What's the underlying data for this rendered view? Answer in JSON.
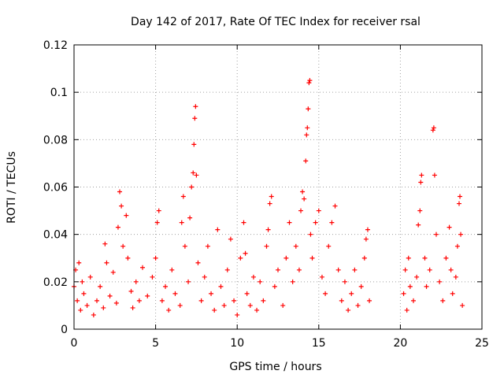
{
  "chart_data": {
    "type": "scatter",
    "title": "Day 142 of 2017, Rate Of TEC Index for receiver rsal",
    "xlabel": "GPS time / hours",
    "ylabel": "ROTI / TECUs",
    "xlim": [
      0,
      25
    ],
    "ylim": [
      0,
      0.12
    ],
    "xticks": [
      0,
      5,
      10,
      15,
      20,
      25
    ],
    "xtick_labels": [
      "0",
      "5",
      "10",
      "15",
      "20",
      "25"
    ],
    "yticks": [
      0,
      0.02,
      0.04,
      0.06,
      0.08,
      0.1,
      0.12
    ],
    "ytick_labels": [
      "0",
      "0.02",
      "0.04",
      "0.06",
      "0.08",
      "0.1",
      "0.12"
    ],
    "grid": true,
    "marker": "plus",
    "color": "#ff0000",
    "data_gap_hours": [
      18.2,
      20.2
    ],
    "series": [
      {
        "name": "ROTI",
        "points": [
          [
            0.0,
            0.018
          ],
          [
            0.1,
            0.025
          ],
          [
            0.2,
            0.012
          ],
          [
            0.3,
            0.028
          ],
          [
            0.4,
            0.008
          ],
          [
            0.5,
            0.02
          ],
          [
            0.6,
            0.015
          ],
          [
            0.8,
            0.01
          ],
          [
            1.0,
            0.022
          ],
          [
            1.2,
            0.006
          ],
          [
            1.4,
            0.012
          ],
          [
            1.6,
            0.018
          ],
          [
            1.8,
            0.009
          ],
          [
            1.9,
            0.036
          ],
          [
            2.0,
            0.028
          ],
          [
            2.2,
            0.014
          ],
          [
            2.4,
            0.024
          ],
          [
            2.6,
            0.011
          ],
          [
            2.7,
            0.043
          ],
          [
            2.8,
            0.058
          ],
          [
            2.9,
            0.052
          ],
          [
            3.0,
            0.035
          ],
          [
            3.2,
            0.048
          ],
          [
            3.3,
            0.03
          ],
          [
            3.5,
            0.016
          ],
          [
            3.6,
            0.009
          ],
          [
            3.8,
            0.02
          ],
          [
            4.0,
            0.012
          ],
          [
            4.2,
            0.026
          ],
          [
            4.5,
            0.014
          ],
          [
            4.8,
            0.022
          ],
          [
            5.0,
            0.03
          ],
          [
            5.1,
            0.045
          ],
          [
            5.2,
            0.05
          ],
          [
            5.4,
            0.012
          ],
          [
            5.6,
            0.018
          ],
          [
            5.8,
            0.008
          ],
          [
            6.0,
            0.025
          ],
          [
            6.2,
            0.015
          ],
          [
            6.5,
            0.01
          ],
          [
            6.6,
            0.045
          ],
          [
            6.7,
            0.056
          ],
          [
            6.8,
            0.035
          ],
          [
            7.0,
            0.02
          ],
          [
            7.1,
            0.047
          ],
          [
            7.2,
            0.06
          ],
          [
            7.3,
            0.066
          ],
          [
            7.35,
            0.078
          ],
          [
            7.4,
            0.089
          ],
          [
            7.45,
            0.094
          ],
          [
            7.5,
            0.065
          ],
          [
            7.6,
            0.028
          ],
          [
            7.8,
            0.012
          ],
          [
            8.0,
            0.022
          ],
          [
            8.2,
            0.035
          ],
          [
            8.4,
            0.015
          ],
          [
            8.6,
            0.008
          ],
          [
            8.8,
            0.042
          ],
          [
            9.0,
            0.018
          ],
          [
            9.2,
            0.01
          ],
          [
            9.4,
            0.025
          ],
          [
            9.6,
            0.038
          ],
          [
            9.8,
            0.012
          ],
          [
            10.0,
            0.006
          ],
          [
            10.2,
            0.03
          ],
          [
            10.4,
            0.045
          ],
          [
            10.5,
            0.032
          ],
          [
            10.6,
            0.015
          ],
          [
            10.8,
            0.01
          ],
          [
            11.0,
            0.022
          ],
          [
            11.2,
            0.008
          ],
          [
            11.4,
            0.02
          ],
          [
            11.6,
            0.012
          ],
          [
            11.8,
            0.035
          ],
          [
            11.9,
            0.042
          ],
          [
            12.0,
            0.053
          ],
          [
            12.1,
            0.056
          ],
          [
            12.3,
            0.018
          ],
          [
            12.5,
            0.025
          ],
          [
            12.8,
            0.01
          ],
          [
            13.0,
            0.03
          ],
          [
            13.2,
            0.045
          ],
          [
            13.4,
            0.02
          ],
          [
            13.6,
            0.035
          ],
          [
            13.8,
            0.025
          ],
          [
            13.9,
            0.05
          ],
          [
            14.0,
            0.058
          ],
          [
            14.1,
            0.055
          ],
          [
            14.2,
            0.071
          ],
          [
            14.25,
            0.082
          ],
          [
            14.3,
            0.085
          ],
          [
            14.35,
            0.093
          ],
          [
            14.4,
            0.104
          ],
          [
            14.45,
            0.105
          ],
          [
            14.5,
            0.04
          ],
          [
            14.6,
            0.03
          ],
          [
            14.8,
            0.045
          ],
          [
            15.0,
            0.05
          ],
          [
            15.2,
            0.022
          ],
          [
            15.4,
            0.015
          ],
          [
            15.6,
            0.035
          ],
          [
            15.8,
            0.045
          ],
          [
            16.0,
            0.052
          ],
          [
            16.2,
            0.025
          ],
          [
            16.4,
            0.012
          ],
          [
            16.6,
            0.02
          ],
          [
            16.8,
            0.008
          ],
          [
            17.0,
            0.015
          ],
          [
            17.2,
            0.025
          ],
          [
            17.4,
            0.01
          ],
          [
            17.6,
            0.018
          ],
          [
            17.8,
            0.03
          ],
          [
            17.9,
            0.038
          ],
          [
            18.0,
            0.042
          ],
          [
            18.1,
            0.012
          ],
          [
            20.2,
            0.015
          ],
          [
            20.3,
            0.025
          ],
          [
            20.4,
            0.008
          ],
          [
            20.5,
            0.03
          ],
          [
            20.6,
            0.018
          ],
          [
            20.8,
            0.012
          ],
          [
            21.0,
            0.022
          ],
          [
            21.1,
            0.044
          ],
          [
            21.2,
            0.05
          ],
          [
            21.25,
            0.062
          ],
          [
            21.3,
            0.065
          ],
          [
            21.5,
            0.03
          ],
          [
            21.6,
            0.018
          ],
          [
            21.8,
            0.025
          ],
          [
            22.0,
            0.084
          ],
          [
            22.05,
            0.085
          ],
          [
            22.1,
            0.065
          ],
          [
            22.2,
            0.04
          ],
          [
            22.4,
            0.02
          ],
          [
            22.6,
            0.012
          ],
          [
            22.8,
            0.03
          ],
          [
            23.0,
            0.043
          ],
          [
            23.1,
            0.025
          ],
          [
            23.2,
            0.015
          ],
          [
            23.4,
            0.022
          ],
          [
            23.5,
            0.035
          ],
          [
            23.6,
            0.053
          ],
          [
            23.65,
            0.056
          ],
          [
            23.7,
            0.04
          ],
          [
            23.8,
            0.01
          ]
        ]
      }
    ]
  }
}
